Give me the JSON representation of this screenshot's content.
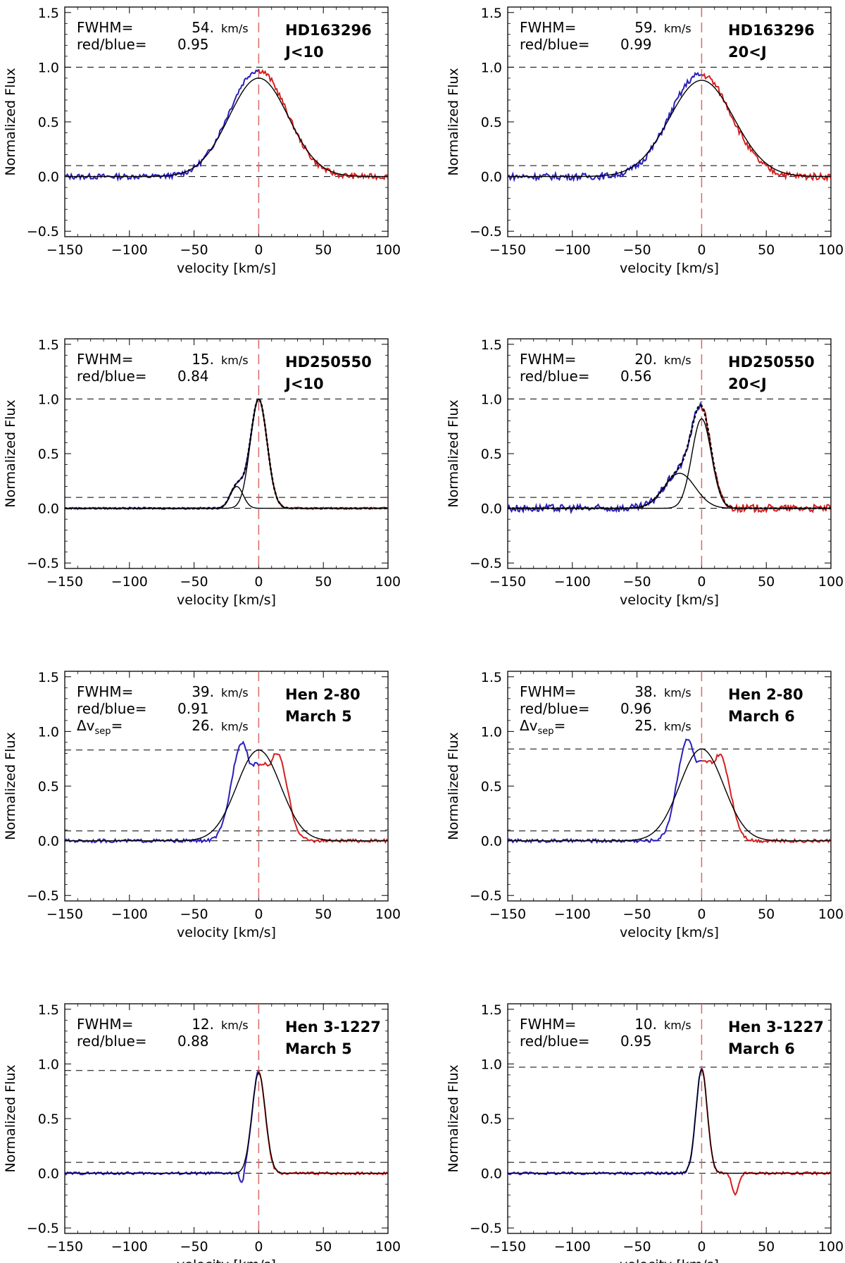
{
  "figure": {
    "description_axes": "shared"
  },
  "chart_data": [
    {
      "type": "line",
      "star": "HD163296",
      "epoch": "J<10",
      "fwhm_label": "FWHM=",
      "fwhm_value": "54.",
      "fwhm_unit": "km/s",
      "rb_label": "red/blue=",
      "rb_value": "0.95",
      "xlabel": "velocity [km/s]",
      "ylabel": "Normalized Flux",
      "xlim": [
        -150,
        100
      ],
      "ylim": [
        -0.55,
        1.55
      ],
      "xticks": [
        -150,
        -100,
        -50,
        0,
        50,
        100
      ],
      "xtick_labels": [
        "−150",
        "−100",
        "−50",
        "0",
        "50",
        "100"
      ],
      "yticks": [
        -0.5,
        0,
        0.5,
        1,
        1.5
      ],
      "ytick_labels": [
        "−0.5",
        "0.0",
        "0.5",
        "1.0",
        "1.5"
      ],
      "hlines": [
        1.0,
        0.1,
        0.0
      ],
      "profile": {
        "amp": 0.97,
        "sigma": 22,
        "noise": 0.025,
        "blue_bias": 0.05
      },
      "fits": [
        {
          "amp": 0.9,
          "center": 0,
          "sigma": 23
        }
      ],
      "series": [
        {
          "name": "blue",
          "color": "#2a1fbd"
        },
        {
          "name": "red",
          "color": "#d42020"
        },
        {
          "name": "fit",
          "color": "#000000"
        }
      ]
    },
    {
      "type": "line",
      "star": "HD163296",
      "epoch": "20<J",
      "fwhm_label": "FWHM=",
      "fwhm_value": "59.",
      "fwhm_unit": "km/s",
      "rb_label": "red/blue=",
      "rb_value": "0.99",
      "xlabel": "velocity [km/s]",
      "ylabel": "Normalized Flux",
      "xlim": [
        -150,
        100
      ],
      "ylim": [
        -0.55,
        1.55
      ],
      "xticks": [
        -150,
        -100,
        -50,
        0,
        50,
        100
      ],
      "xtick_labels": [
        "−150",
        "−100",
        "−50",
        "0",
        "50",
        "100"
      ],
      "yticks": [
        -0.5,
        0,
        0.5,
        1,
        1.5
      ],
      "ytick_labels": [
        "−0.5",
        "0.0",
        "0.5",
        "1.0",
        "1.5"
      ],
      "hlines": [
        1.0,
        0.1,
        0.0
      ],
      "profile": {
        "amp": 0.93,
        "sigma": 23,
        "noise": 0.03,
        "blue_bias": 0.08
      },
      "fits": [
        {
          "amp": 0.88,
          "center": 0,
          "sigma": 25
        }
      ],
      "series": [
        {
          "name": "blue",
          "color": "#2a1fbd"
        },
        {
          "name": "red",
          "color": "#d42020"
        },
        {
          "name": "fit",
          "color": "#000000"
        }
      ]
    },
    {
      "type": "line",
      "star": "HD250550",
      "epoch": "J<10",
      "fwhm_label": "FWHM=",
      "fwhm_value": "15.",
      "fwhm_unit": "km/s",
      "rb_label": "red/blue=",
      "rb_value": "0.84",
      "xlabel": "velocity [km/s]",
      "ylabel": "Normalized Flux",
      "xlim": [
        -150,
        100
      ],
      "ylim": [
        -0.55,
        1.55
      ],
      "xticks": [
        -150,
        -100,
        -50,
        0,
        50,
        100
      ],
      "xtick_labels": [
        "−150",
        "−100",
        "−50",
        "0",
        "50",
        "100"
      ],
      "yticks": [
        -0.5,
        0,
        0.5,
        1,
        1.5
      ],
      "ytick_labels": [
        "−0.5",
        "0.0",
        "0.5",
        "1.0",
        "1.5"
      ],
      "hlines": [
        1.0,
        0.1,
        0.0
      ],
      "profile": {
        "amp": 1.0,
        "sigma": 6.5,
        "noise": 0.008,
        "blue_bias": 0.0,
        "shoulder": {
          "amp": 0.2,
          "center": -17,
          "sigma": 5
        }
      },
      "fits": [
        {
          "amp": 1.0,
          "center": 0,
          "sigma": 6.5
        },
        {
          "amp": 0.2,
          "center": -17,
          "sigma": 5
        }
      ],
      "dotted_fit": true,
      "series": [
        {
          "name": "blue",
          "color": "#2a1fbd"
        },
        {
          "name": "red",
          "color": "#d42020"
        },
        {
          "name": "fit",
          "color": "#000000"
        }
      ]
    },
    {
      "type": "line",
      "star": "HD250550",
      "epoch": "20<J",
      "fwhm_label": "FWHM=",
      "fwhm_value": "20.",
      "fwhm_unit": "km/s",
      "rb_label": "red/blue=",
      "rb_value": "0.56",
      "xlabel": "velocity [km/s]",
      "ylabel": "Normalized Flux",
      "xlim": [
        -150,
        100
      ],
      "ylim": [
        -0.55,
        1.55
      ],
      "xticks": [
        -150,
        -100,
        -50,
        0,
        50,
        100
      ],
      "xtick_labels": [
        "−150",
        "−100",
        "−50",
        "0",
        "50",
        "100"
      ],
      "yticks": [
        -0.5,
        0,
        0.5,
        1,
        1.5
      ],
      "ytick_labels": [
        "−0.5",
        "0.0",
        "0.5",
        "1.0",
        "1.5"
      ],
      "hlines": [
        1.0,
        0.1,
        0.0
      ],
      "profile": {
        "amp": 0.82,
        "sigma": 7.5,
        "noise": 0.035,
        "blue_bias": 0.0,
        "shoulder": {
          "amp": 0.32,
          "center": -17,
          "sigma": 12
        }
      },
      "fits": [
        {
          "amp": 0.82,
          "center": 0,
          "sigma": 7.5
        },
        {
          "amp": 0.32,
          "center": -17,
          "sigma": 12
        }
      ],
      "dotted_fit": true,
      "series": [
        {
          "name": "blue",
          "color": "#2a1fbd"
        },
        {
          "name": "red",
          "color": "#d42020"
        },
        {
          "name": "fit",
          "color": "#000000"
        }
      ]
    },
    {
      "type": "line",
      "star": "Hen 2-80",
      "epoch": "March 5",
      "fwhm_label": "FWHM=",
      "fwhm_value": "39.",
      "fwhm_unit": "km/s",
      "rb_label": "red/blue=",
      "rb_value": "0.91",
      "sep_label": "Δv",
      "sep_sub": "sep",
      "sep_eq": "=",
      "sep_value": "26.",
      "sep_unit": "km/s",
      "xlabel": "velocity [km/s]",
      "ylabel": "Normalized Flux",
      "xlim": [
        -150,
        100
      ],
      "ylim": [
        -0.55,
        1.55
      ],
      "xticks": [
        -150,
        -100,
        -50,
        0,
        50,
        100
      ],
      "xtick_labels": [
        "−150",
        "−100",
        "−50",
        "0",
        "50",
        "100"
      ],
      "yticks": [
        -0.5,
        0,
        0.5,
        1,
        1.5
      ],
      "ytick_labels": [
        "−0.5",
        "0.0",
        "0.5",
        "1.0",
        "1.5"
      ],
      "hlines": [
        0.83,
        0.09,
        0.0
      ],
      "profile": {
        "double": true,
        "peak1": {
          "amp": 0.9,
          "center": -13,
          "sigma": 8
        },
        "peak2": {
          "amp": 0.8,
          "center": 14,
          "sigma": 8
        },
        "dip": 0.7,
        "noise": 0.015
      },
      "fits": [
        {
          "amp": 0.83,
          "center": 0,
          "sigma": 17
        }
      ],
      "series": [
        {
          "name": "blue",
          "color": "#2a1fbd"
        },
        {
          "name": "red",
          "color": "#d42020"
        },
        {
          "name": "fit",
          "color": "#000000"
        }
      ]
    },
    {
      "type": "line",
      "star": "Hen 2-80",
      "epoch": "March 6",
      "fwhm_label": "FWHM=",
      "fwhm_value": "38.",
      "fwhm_unit": "km/s",
      "rb_label": "red/blue=",
      "rb_value": "0.96",
      "sep_label": "Δv",
      "sep_sub": "sep",
      "sep_eq": "=",
      "sep_value": "25.",
      "sep_unit": "km/s",
      "xlabel": "velocity [km/s]",
      "ylabel": "Normalized Flux",
      "xlim": [
        -150,
        100
      ],
      "ylim": [
        -0.55,
        1.55
      ],
      "xticks": [
        -150,
        -100,
        -50,
        0,
        50,
        100
      ],
      "xtick_labels": [
        "−150",
        "−100",
        "−50",
        "0",
        "50",
        "100"
      ],
      "yticks": [
        -0.5,
        0,
        0.5,
        1,
        1.5
      ],
      "ytick_labels": [
        "−0.5",
        "0.0",
        "0.5",
        "1.0",
        "1.5"
      ],
      "hlines": [
        0.84,
        0.09,
        0.0
      ],
      "profile": {
        "double": true,
        "peak1": {
          "amp": 0.92,
          "center": -11,
          "sigma": 8
        },
        "peak2": {
          "amp": 0.78,
          "center": 14,
          "sigma": 8
        },
        "dip": 0.72,
        "noise": 0.015
      },
      "fits": [
        {
          "amp": 0.84,
          "center": 0,
          "sigma": 17
        }
      ],
      "series": [
        {
          "name": "blue",
          "color": "#2a1fbd"
        },
        {
          "name": "red",
          "color": "#d42020"
        },
        {
          "name": "fit",
          "color": "#000000"
        }
      ]
    },
    {
      "type": "line",
      "star": "Hen 3-1227",
      "epoch": "March 5",
      "fwhm_label": "FWHM=",
      "fwhm_value": "12.",
      "fwhm_unit": "km/s",
      "rb_label": "red/blue=",
      "rb_value": "0.88",
      "xlabel": "velocity [km/s]",
      "ylabel": "Normalized Flux",
      "xlim": [
        -150,
        100
      ],
      "ylim": [
        -0.55,
        1.55
      ],
      "xticks": [
        -150,
        -100,
        -50,
        0,
        50,
        100
      ],
      "xtick_labels": [
        "−150",
        "−100",
        "−50",
        "0",
        "50",
        "100"
      ],
      "yticks": [
        -0.5,
        0,
        0.5,
        1,
        1.5
      ],
      "ytick_labels": [
        "−0.5",
        "0.0",
        "0.5",
        "1.0",
        "1.5"
      ],
      "hlines": [
        0.94,
        0.1,
        0.0
      ],
      "profile": {
        "amp": 0.93,
        "sigma": 5,
        "noise": 0.012,
        "blue_bias": 0.0,
        "absorb": {
          "amp": -0.12,
          "center": -13,
          "sigma": 1.5
        }
      },
      "fits": [
        {
          "amp": 0.92,
          "center": 0,
          "sigma": 5.2
        }
      ],
      "series": [
        {
          "name": "blue",
          "color": "#2a1fbd"
        },
        {
          "name": "red",
          "color": "#d42020"
        },
        {
          "name": "fit",
          "color": "#000000"
        }
      ]
    },
    {
      "type": "line",
      "star": "Hen 3-1227",
      "epoch": "March 6",
      "fwhm_label": "FWHM=",
      "fwhm_value": "10.",
      "fwhm_unit": "km/s",
      "rb_label": "red/blue=",
      "rb_value": "0.95",
      "xlabel": "velocity [km/s]",
      "ylabel": "Normalized Flux",
      "xlim": [
        -150,
        100
      ],
      "ylim": [
        -0.55,
        1.55
      ],
      "xticks": [
        -150,
        -100,
        -50,
        0,
        50,
        100
      ],
      "xtick_labels": [
        "−150",
        "−100",
        "−50",
        "0",
        "50",
        "100"
      ],
      "yticks": [
        -0.5,
        0,
        0.5,
        1,
        1.5
      ],
      "ytick_labels": [
        "−0.5",
        "0.0",
        "0.5",
        "1.0",
        "1.5"
      ],
      "hlines": [
        0.97,
        0.1,
        0.0
      ],
      "profile": {
        "amp": 0.96,
        "sigma": 4.3,
        "noise": 0.012,
        "blue_bias": 0.0,
        "absorb": {
          "amp": -0.2,
          "center": 26,
          "sigma": 2.5
        }
      },
      "fits": [
        {
          "amp": 0.95,
          "center": 0,
          "sigma": 4.4
        }
      ],
      "series": [
        {
          "name": "blue",
          "color": "#2a1fbd"
        },
        {
          "name": "red",
          "color": "#d42020"
        },
        {
          "name": "fit",
          "color": "#000000"
        }
      ]
    }
  ]
}
